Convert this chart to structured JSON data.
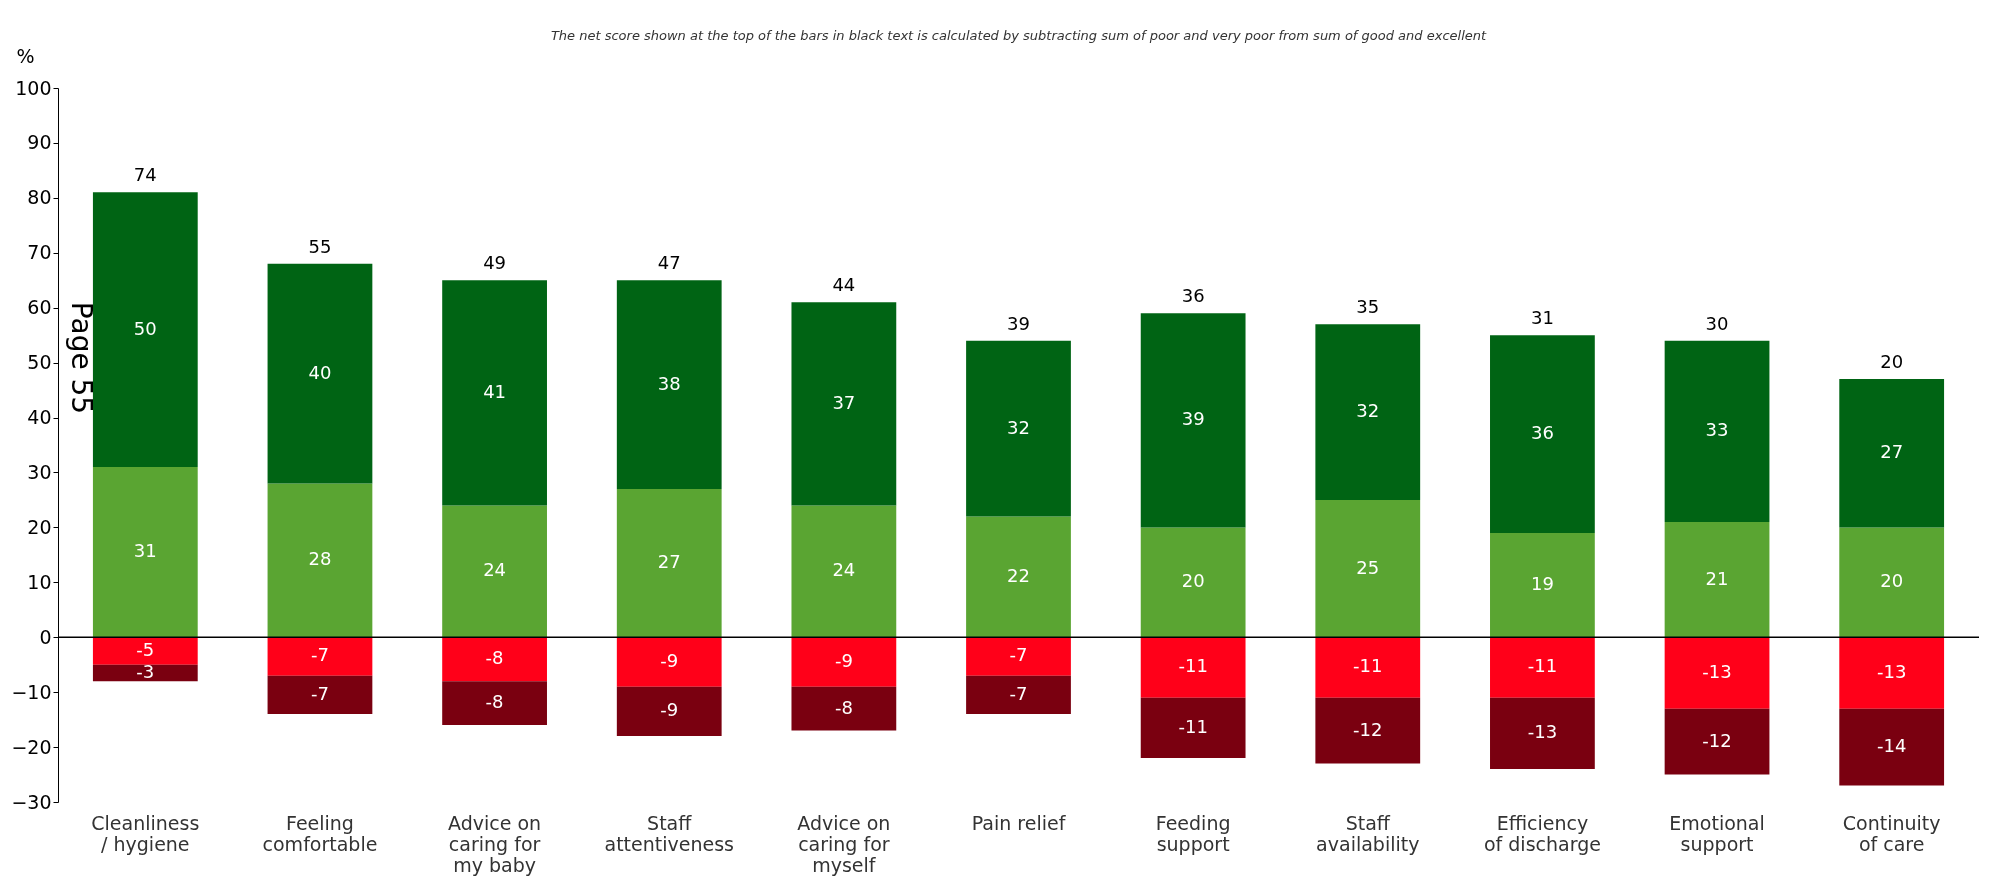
{
  "chart_data": {
    "type": "bar",
    "title": "The net score  shown at the top of the bars in black text is calculated by subtracting sum of poor and very poor from sum of good and excellent",
    "ylabel": "%",
    "categories": [
      "Cleanliness / hygiene",
      "Feeling comfortable",
      "Advice on caring for my baby",
      "Staff attentiveness",
      "Advice on caring for myself",
      "Pain relief",
      "Feeding support",
      "Staff availability",
      "Efficiency of discharge",
      "Emotional support",
      "Continuity of care"
    ],
    "series": [
      {
        "color": "#5aa532",
        "values": [
          31,
          28,
          24,
          27,
          24,
          22,
          20,
          25,
          19,
          21,
          20
        ]
      },
      {
        "color": "#006414",
        "values": [
          50,
          40,
          41,
          38,
          37,
          32,
          39,
          32,
          36,
          33,
          27
        ]
      },
      {
        "color": "#ff0019",
        "values": [
          -5,
          -7,
          -8,
          -9,
          -9,
          -7,
          -11,
          -11,
          -11,
          -13,
          -13
        ]
      },
      {
        "color": "#7a0010",
        "values": [
          -3,
          -7,
          -8,
          -9,
          -8,
          -7,
          -11,
          -12,
          -13,
          -12,
          -14
        ]
      }
    ],
    "stacked": true,
    "data_labels": true,
    "totals": [
      "74",
      "55",
      "49",
      "47",
      "44",
      "39",
      "36",
      "35",
      "31",
      "30",
      "20"
    ],
    "ylim": [
      -30,
      100
    ],
    "yticks": [
      -30,
      -20,
      -10,
      0,
      10,
      20,
      30,
      40,
      50,
      60,
      70,
      80,
      90,
      100
    ],
    "ref_lines": [
      {
        "axis": "y",
        "value": 0,
        "color": "#000000"
      }
    ],
    "annotations": [
      "Page 55"
    ],
    "grid": false
  }
}
